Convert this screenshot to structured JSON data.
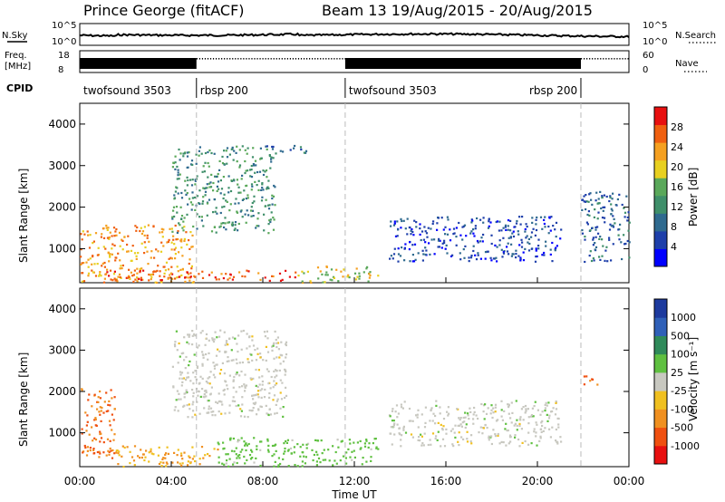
{
  "header": {
    "station": "Prince George (fitACF)",
    "beam_range": "Beam 13  19/Aug/2015 - 20/Aug/2015"
  },
  "top_panels": {
    "nsky_label": "N.Sky",
    "nsearch_label": "N.Search",
    "freq_label_1": "Freq.",
    "freq_label_2": "[MHz]",
    "nave_label": "Nave",
    "cpid_label": "CPID",
    "noise_ticks_left": [
      "10^5",
      "10^0"
    ],
    "noise_ticks_right": [
      "10^5",
      "10^0"
    ],
    "freq_ticks": [
      "18",
      "8"
    ],
    "nave_ticks": [
      "60",
      "0"
    ],
    "cpid_segments": [
      {
        "label": "twofsound 3503",
        "start_h": 0.0
      },
      {
        "label": "rbsp 200",
        "start_h": 5.1
      },
      {
        "label": "twofsound 3503",
        "start_h": 11.6
      },
      {
        "label": "rbsp 200",
        "start_h": 21.9
      }
    ]
  },
  "power_panel": {
    "ylabel": "Slant Range [km]",
    "yticks": [
      "4000",
      "3000",
      "2000",
      "1000"
    ],
    "colorbar_label": "Power [dB]",
    "colorbar_ticks": [
      "28",
      "24",
      "20",
      "16",
      "12",
      "8",
      "4"
    ],
    "colorbar_colors": [
      "#0000ff",
      "#1e3faa",
      "#2f6a8f",
      "#3f8f6a",
      "#5aa85a",
      "#e8d020",
      "#f5a020",
      "#f06010",
      "#e81010"
    ]
  },
  "velocity_panel": {
    "ylabel": "Slant Range [km]",
    "yticks": [
      "4000",
      "3000",
      "2000",
      "1000"
    ],
    "colorbar_label": "Velocity [m s⁻¹]",
    "colorbar_ticks": [
      "1000",
      "500",
      "100",
      "25",
      "-25",
      "-100",
      "-500",
      "-1000"
    ],
    "colorbar_colors": [
      "#1d3a9e",
      "#2f60b8",
      "#2f8a5a",
      "#5fc040",
      "#c8c8c0",
      "#f0c020",
      "#f09020",
      "#f05010",
      "#e81010"
    ]
  },
  "xaxis": {
    "label": "Time UT",
    "ticks": [
      "00:00",
      "04:00",
      "08:00",
      "12:00",
      "16:00",
      "20:00",
      "00:00"
    ]
  },
  "chart_data": {
    "type": "heatmap",
    "title": "Prince George (fitACF)",
    "subtitle": "Beam 13  19/Aug/2015 - 20/Aug/2015",
    "xlabel": "Time UT",
    "ylabel": "Slant Range [km]",
    "x_range_hours": [
      0,
      24
    ],
    "y_range_km": [
      180,
      4500
    ],
    "mode_change_hours": [
      5.1,
      11.6,
      21.9
    ],
    "power_features": [
      {
        "t0": 0.0,
        "t1": 5.0,
        "r0": 200,
        "r1": 1600,
        "db": 22
      },
      {
        "t0": 1.0,
        "t1": 9.5,
        "r0": 250,
        "r1": 500,
        "db": 26
      },
      {
        "t0": 4.0,
        "t1": 8.5,
        "r0": 1400,
        "r1": 3500,
        "db": 12
      },
      {
        "t0": 8.0,
        "t1": 10.0,
        "r0": 3300,
        "r1": 3500,
        "db": 8
      },
      {
        "t0": 9.5,
        "t1": 13.0,
        "r0": 200,
        "r1": 600,
        "db": 18
      },
      {
        "t0": 13.5,
        "t1": 21.0,
        "r0": 700,
        "r1": 1800,
        "db": 6
      },
      {
        "t0": 21.9,
        "t1": 24.0,
        "r0": 700,
        "r1": 2400,
        "db": 8
      }
    ],
    "velocity_features": [
      {
        "t0": 0.0,
        "t1": 1.5,
        "r0": 400,
        "r1": 2100,
        "v": -500
      },
      {
        "t0": 1.5,
        "t1": 6.0,
        "r0": 200,
        "r1": 700,
        "v": -100
      },
      {
        "t0": 4.0,
        "t1": 9.0,
        "r0": 1400,
        "r1": 3500,
        "v": 0
      },
      {
        "t0": 6.0,
        "t1": 13.0,
        "r0": 200,
        "r1": 900,
        "v": 50
      },
      {
        "t0": 13.5,
        "t1": 21.0,
        "r0": 700,
        "r1": 1800,
        "v": 0
      },
      {
        "t0": 22.0,
        "t1": 22.7,
        "r0": 2100,
        "r1": 2400,
        "v": -500
      }
    ]
  }
}
